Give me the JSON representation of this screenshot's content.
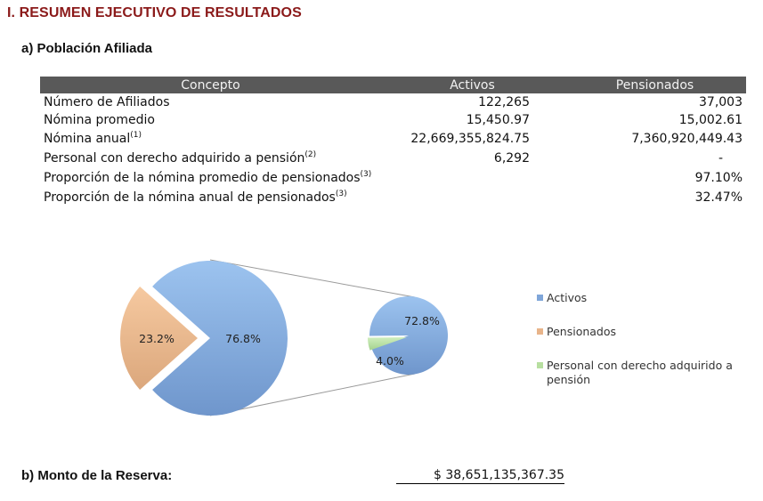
{
  "section_title": "I. RESUMEN EJECUTIVO DE RESULTADOS",
  "subsection_a": "a)  Población Afiliada",
  "table": {
    "headers": [
      "Concepto",
      "Activos",
      "Pensionados"
    ],
    "rows": [
      {
        "concept": "Número de Afiliados",
        "note": "",
        "activos": "122,265",
        "pensionados": "37,003"
      },
      {
        "concept": "Nómina promedio",
        "note": "",
        "activos": "15,450.97",
        "pensionados": "15,002.61"
      },
      {
        "concept": "Nómina anual",
        "note": "(1)",
        "activos": "22,669,355,824.75",
        "pensionados": "7,360,920,449.43"
      },
      {
        "concept": "Personal con derecho adquirido a pensión",
        "note": "(2)",
        "activos": "6,292",
        "pensionados": "-"
      },
      {
        "concept": "Proporción de la nómina promedio de pensionados",
        "note": "(3)",
        "activos": "",
        "pensionados": "97.10%"
      },
      {
        "concept": "Proporción de la nómina anual de pensionados",
        "note": "(3)",
        "activos": "",
        "pensionados": "32.47%"
      }
    ]
  },
  "chart_data": {
    "type": "pie",
    "main_pie": {
      "labels": [
        "Activos",
        "Pensionados"
      ],
      "values": [
        76.8,
        23.2
      ],
      "value_labels": [
        "76.8%",
        "23.2%"
      ]
    },
    "secondary_pie": {
      "labels": [
        "Activos",
        "Personal con derecho adquirido a pensión"
      ],
      "values": [
        72.8,
        4.0
      ],
      "value_labels": [
        "72.8%",
        "4.0%"
      ]
    },
    "legend": [
      {
        "label": "Activos",
        "color": "#7fa6d9"
      },
      {
        "label": "Pensionados",
        "color": "#e8b48a"
      },
      {
        "label": "Personal con derecho adquirido a pensión",
        "color": "#b7dfa0"
      }
    ],
    "legend_position": "right"
  },
  "colors": {
    "title": "#8b1a1a",
    "header_bg": "#595959",
    "activos": "#7fa6d9",
    "pensionados": "#e8b48a",
    "derecho": "#b7dfa0"
  },
  "subsection_b": "b)  Monto de la Reserva:",
  "reserve_value": "$ 38,651,135,367.35"
}
